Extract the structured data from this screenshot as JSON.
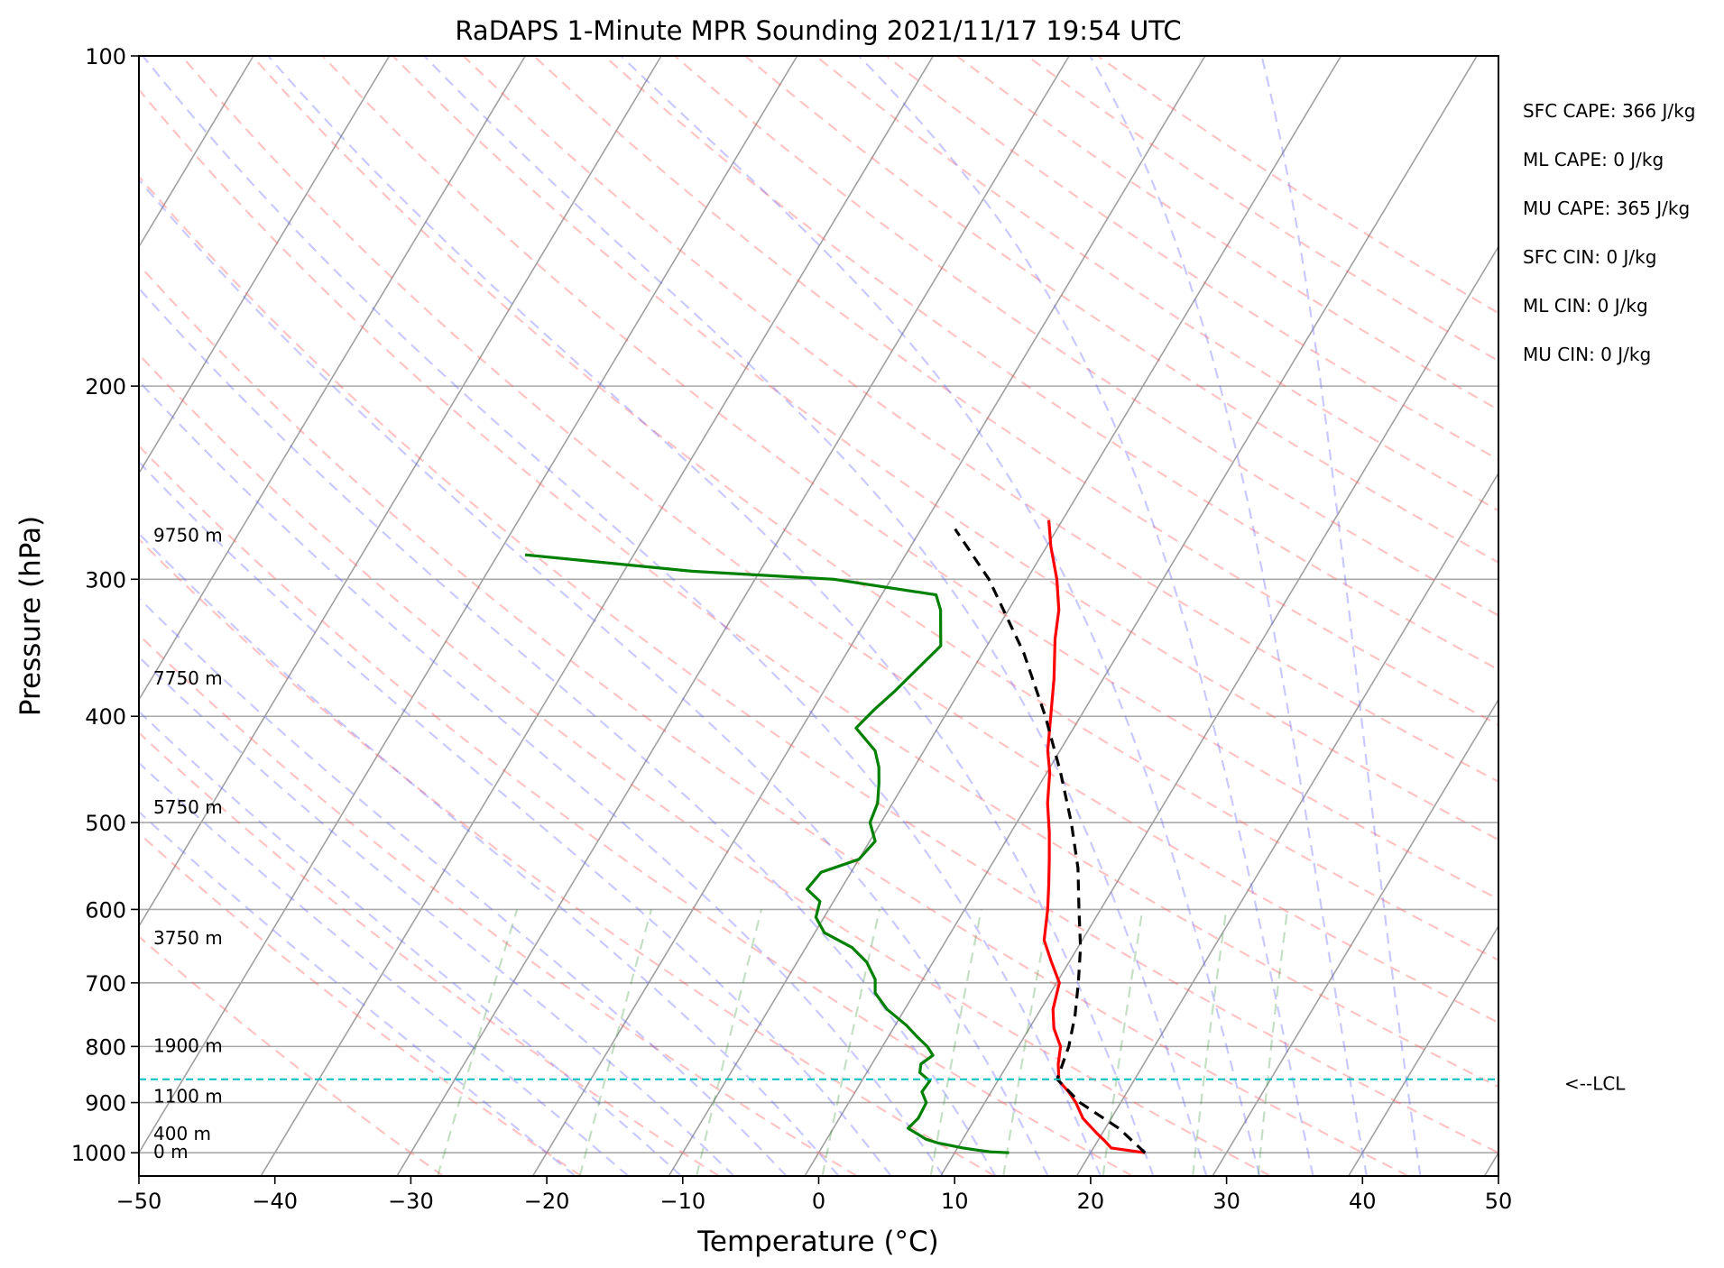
{
  "chart_data": {
    "type": "line",
    "title": "RaDAPS 1-Minute MPR Sounding 2021/11/17 19:54 UTC",
    "xlabel": "Temperature (°C)",
    "ylabel": "Pressure (hPa)",
    "xlim": [
      -50,
      50
    ],
    "ylim": [
      1050,
      100
    ],
    "y_scale": "log",
    "skew": "skew-T log-p",
    "x_ticks": [
      "−50",
      "−40",
      "−30",
      "−20",
      "−10",
      "0",
      "10",
      "20",
      "30",
      "40",
      "50"
    ],
    "y_ticks": [
      {
        "p": 100,
        "label": "100"
      },
      {
        "p": 200,
        "label": "200"
      },
      {
        "p": 300,
        "label": "300"
      },
      {
        "p": 400,
        "label": "400"
      },
      {
        "p": 500,
        "label": "500"
      },
      {
        "p": 600,
        "label": "600"
      },
      {
        "p": 700,
        "label": "700"
      },
      {
        "p": 800,
        "label": "800"
      },
      {
        "p": 900,
        "label": "900"
      },
      {
        "p": 1000,
        "label": "1000"
      }
    ],
    "height_labels": [
      {
        "p": 1000,
        "label": "0 m"
      },
      {
        "p": 962,
        "label": "400 m"
      },
      {
        "p": 890,
        "label": "1100 m"
      },
      {
        "p": 800,
        "label": "1900 m"
      },
      {
        "p": 638,
        "label": "3750 m"
      },
      {
        "p": 485,
        "label": "5750 m"
      },
      {
        "p": 370,
        "label": "7750 m"
      },
      {
        "p": 274,
        "label": "9750 m"
      }
    ],
    "lcl": {
      "p": 857,
      "label": "<--LCL"
    },
    "indices": [
      "SFC CAPE: 366 J/kg",
      "ML CAPE: 0 J/kg",
      "MU CAPE: 365 J/kg",
      "SFC CIN: 0 J/kg",
      "ML CIN: 0 J/kg",
      "MU CIN: 0 J/kg"
    ],
    "series": [
      {
        "kind": "temperature",
        "color": "#ff0000",
        "p": [
          1000,
          990,
          975,
          960,
          930,
          900,
          880,
          860,
          830,
          800,
          770,
          740,
          700,
          670,
          640,
          600,
          570,
          540,
          510,
          480,
          450,
          430,
          400,
          370,
          340,
          320,
          300,
          280,
          265
        ],
        "t": [
          24,
          21.3,
          20.5,
          19.6,
          17.9,
          16.7,
          15.7,
          14.5,
          13.7,
          13.1,
          11.8,
          10.9,
          10.2,
          8.7,
          7.2,
          6.1,
          5.1,
          4.0,
          2.8,
          1.4,
          0.2,
          -0.9,
          -2.2,
          -3.6,
          -5.3,
          -6.3,
          -7.8,
          -9.7,
          -11.0
        ]
      },
      {
        "kind": "dewpoint",
        "color": "#008000",
        "p": [
          1000,
          998,
          995,
          990,
          985,
          980,
          972,
          962,
          950,
          930,
          900,
          880,
          860,
          845,
          830,
          815,
          800,
          785,
          765,
          740,
          715,
          695,
          670,
          650,
          630,
          610,
          590,
          575,
          555,
          540,
          520,
          500,
          480,
          460,
          445,
          430,
          410,
          395,
          380,
          345,
          320,
          310,
          300,
          295,
          285
        ],
        "t": [
          14.0,
          12.6,
          11.7,
          10.4,
          9.4,
          8.4,
          7.3,
          6.5,
          5.5,
          5.8,
          5.7,
          4.9,
          5.0,
          3.9,
          3.6,
          4.1,
          3.3,
          2.2,
          0.8,
          -1.3,
          -2.9,
          -3.5,
          -4.9,
          -6.6,
          -9.3,
          -10.6,
          -11.0,
          -12.5,
          -12.2,
          -10.0,
          -9.6,
          -10.8,
          -11.1,
          -11.9,
          -12.6,
          -13.6,
          -16.0,
          -15.5,
          -14.8,
          -13.4,
          -15.0,
          -16.0,
          -24.2,
          -35.0,
          -48.0
        ]
      },
      {
        "kind": "parcel",
        "color": "#000000",
        "p": [
          1000,
          950,
          900,
          857,
          800,
          750,
          700,
          650,
          600,
          550,
          500,
          450,
          400,
          350,
          300,
          270
        ],
        "t": [
          24.0,
          21.0,
          17.0,
          14.3,
          13.7,
          12.8,
          11.6,
          10.2,
          8.4,
          6.5,
          4.0,
          1.0,
          -2.6,
          -7.0,
          -12.8,
          -17.5
        ]
      }
    ]
  }
}
